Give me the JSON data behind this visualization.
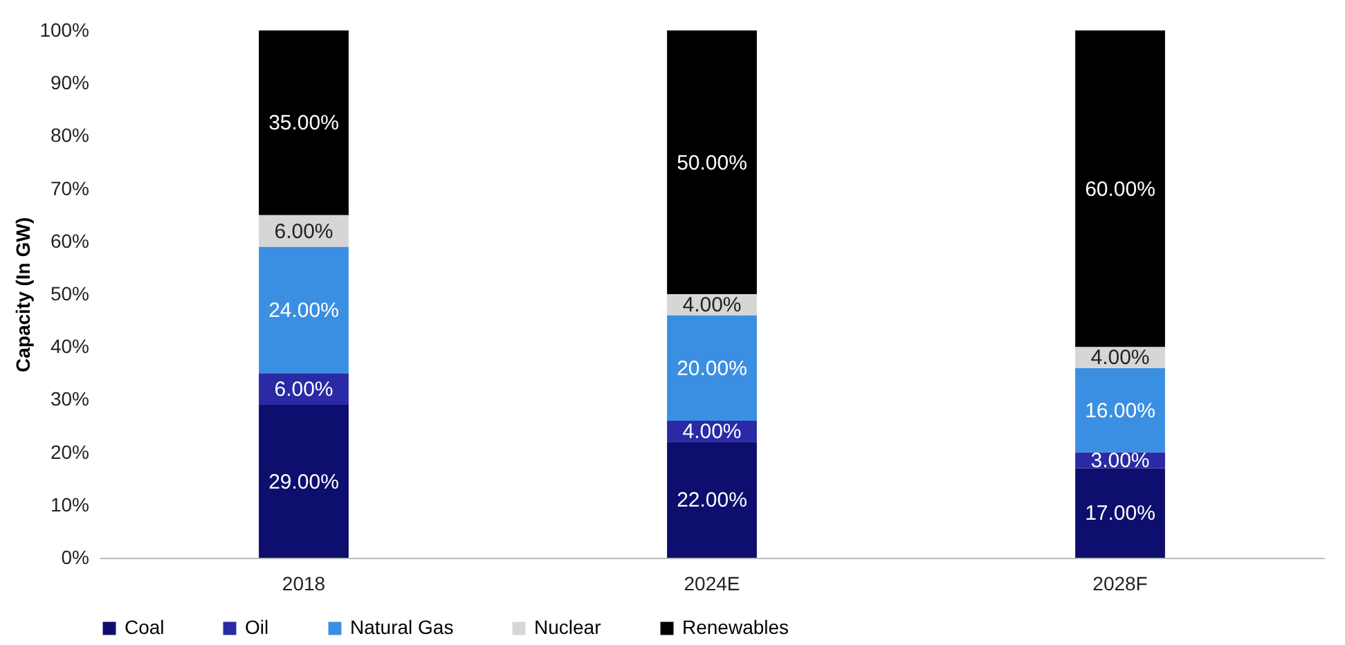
{
  "chart_data": {
    "type": "bar",
    "stacked": true,
    "ylabel": "Capacity (In GW)",
    "categories": [
      "2018",
      "2024E",
      "2028F"
    ],
    "ylim": [
      0,
      100
    ],
    "yticks": [
      {
        "value": 0,
        "label": "0%"
      },
      {
        "value": 10,
        "label": "10%"
      },
      {
        "value": 20,
        "label": "20%"
      },
      {
        "value": 30,
        "label": "30%"
      },
      {
        "value": 40,
        "label": "40%"
      },
      {
        "value": 50,
        "label": "50%"
      },
      {
        "value": 60,
        "label": "60%"
      },
      {
        "value": 70,
        "label": "70%"
      },
      {
        "value": 80,
        "label": "80%"
      },
      {
        "value": 90,
        "label": "90%"
      },
      {
        "value": 100,
        "label": "100%"
      }
    ],
    "grid": false,
    "legend": "bottom",
    "series": [
      {
        "name": "Coal",
        "color": "#0e0e6e",
        "values": [
          29,
          22,
          17
        ],
        "value_labels": [
          "29.00%",
          "22.00%",
          "17.00%"
        ]
      },
      {
        "name": "Oil",
        "color": "#2a2aa6",
        "values": [
          6,
          4,
          3
        ],
        "value_labels": [
          "6.00%",
          "4.00%",
          "3.00%"
        ]
      },
      {
        "name": "Natural Gas",
        "color": "#3b8fe2",
        "values": [
          24,
          20,
          16
        ],
        "value_labels": [
          "24.00%",
          "20.00%",
          "16.00%"
        ]
      },
      {
        "name": "Nuclear",
        "color": "#d6d6d6",
        "values": [
          6,
          4,
          4
        ],
        "value_labels": [
          "6.00%",
          "4.00%",
          "4.00%"
        ]
      },
      {
        "name": "Renewables",
        "color": "#000000",
        "values": [
          35,
          50,
          60
        ],
        "value_labels": [
          "35.00%",
          "50.00%",
          "60.00%"
        ]
      }
    ]
  }
}
